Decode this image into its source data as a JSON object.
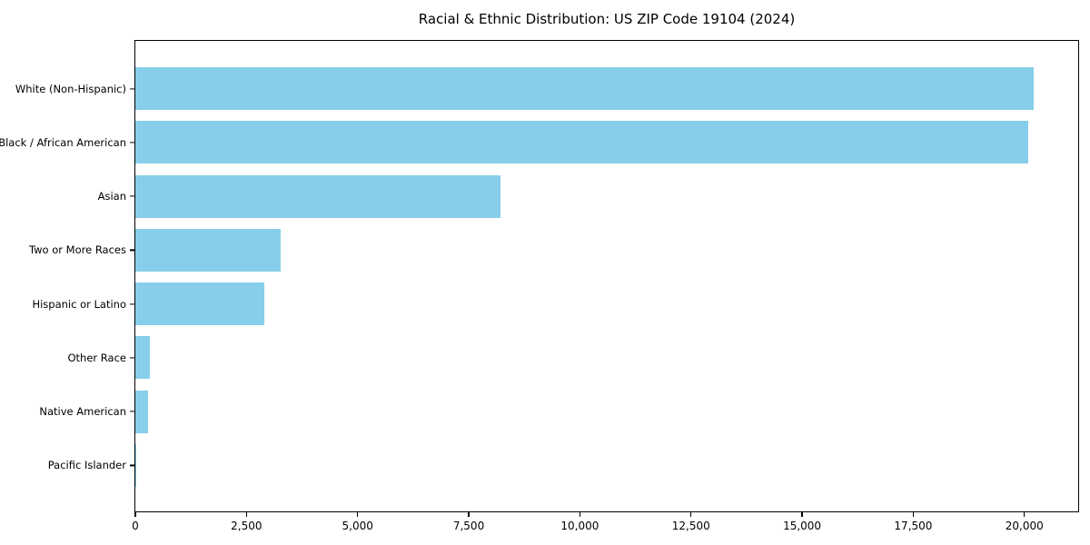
{
  "figure": {
    "background_color": "#ffffff",
    "text_color": "#000000",
    "axis_border_color": "#000000"
  },
  "chart_data": {
    "type": "bar",
    "orientation": "horizontal",
    "title": "Racial & Ethnic Distribution: US ZIP Code 19104 (2024)",
    "xlabel": "",
    "ylabel": "",
    "categories": [
      "White (Non-Hispanic)",
      "Black / African American",
      "Asian",
      "Two or More Races",
      "Hispanic or Latino",
      "Other Race",
      "Native American",
      "Pacific Islander"
    ],
    "values": [
      20200,
      20080,
      8210,
      3270,
      2900,
      320,
      285,
      20
    ],
    "bar_color": "#87CEEB",
    "xlim": [
      0,
      21210
    ],
    "x_ticks": [
      {
        "value": 0,
        "label": "0"
      },
      {
        "value": 2500,
        "label": "2,500"
      },
      {
        "value": 5000,
        "label": "5,000"
      },
      {
        "value": 7500,
        "label": "7,500"
      },
      {
        "value": 10000,
        "label": "10,000"
      },
      {
        "value": 12500,
        "label": "12,500"
      },
      {
        "value": 15000,
        "label": "15,000"
      },
      {
        "value": 17500,
        "label": "17,500"
      },
      {
        "value": 20000,
        "label": "20,000"
      }
    ],
    "grid": false,
    "legend": null
  }
}
